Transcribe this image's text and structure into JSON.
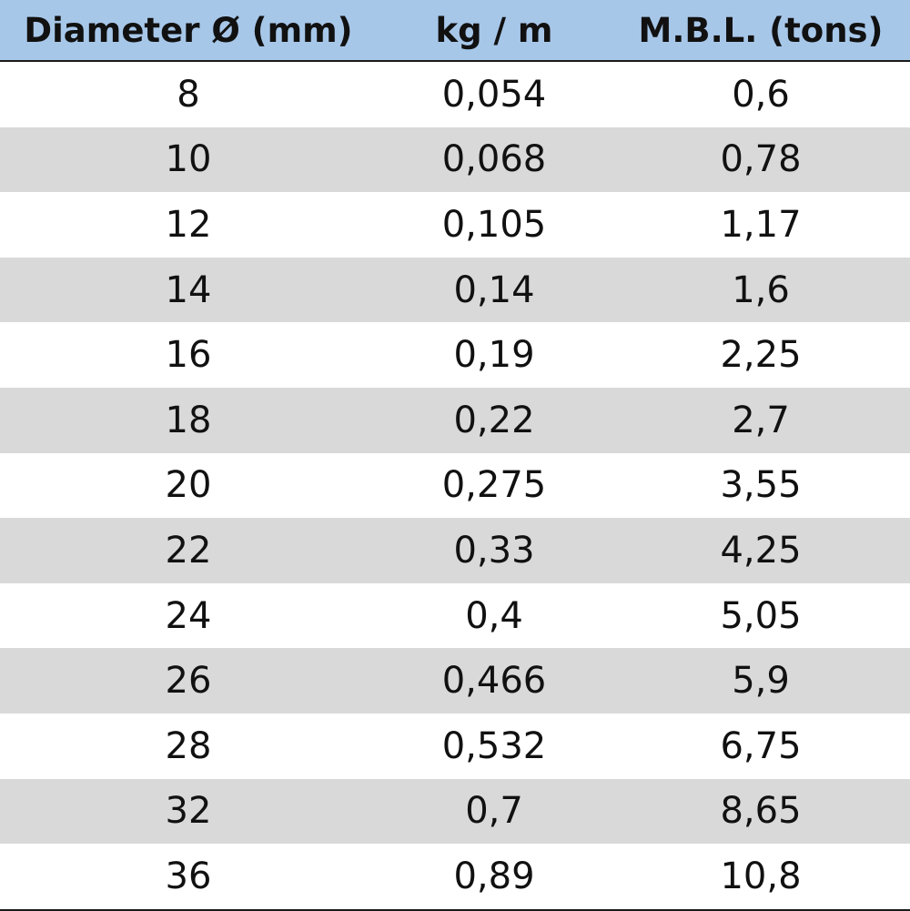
{
  "table": {
    "header": [
      "Diameter Ø (mm)",
      "kg / m",
      "M.B.L. (tons)"
    ],
    "rows": [
      [
        "8",
        "0,054",
        "0,6"
      ],
      [
        "10",
        "0,068",
        "0,78"
      ],
      [
        "12",
        "0,105",
        "1,17"
      ],
      [
        "14",
        "0,14",
        "1,6"
      ],
      [
        "16",
        "0,19",
        "2,25"
      ],
      [
        "18",
        "0,22",
        "2,7"
      ],
      [
        "20",
        "0,275",
        "3,55"
      ],
      [
        "22",
        "0,33",
        "4,25"
      ],
      [
        "24",
        "0,4",
        "5,05"
      ],
      [
        "26",
        "0,466",
        "5,9"
      ],
      [
        "28",
        "0,532",
        "6,75"
      ],
      [
        "32",
        "0,7",
        "8,65"
      ],
      [
        "36",
        "0,89",
        "10,8"
      ]
    ]
  }
}
